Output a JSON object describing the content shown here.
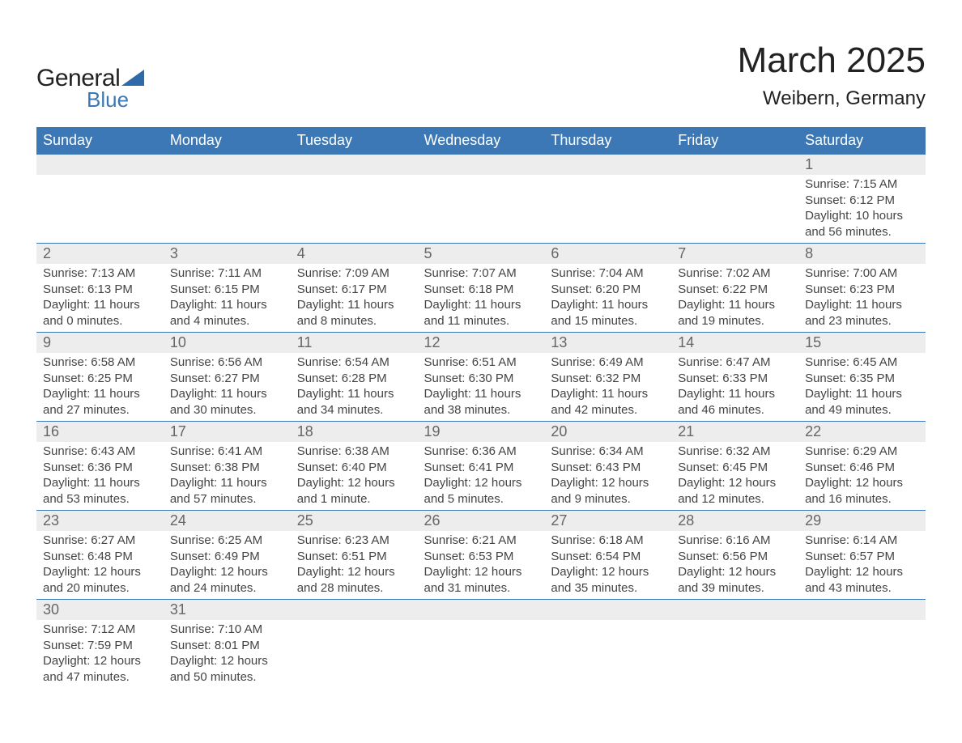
{
  "logo": {
    "text1": "General",
    "text2": "Blue",
    "triangle_color": "#2f6aa8"
  },
  "title": "March 2025",
  "location": "Weibern, Germany",
  "colors": {
    "header_bg": "#3b78b5",
    "header_fg": "#ffffff",
    "daynum_bg": "#ededed",
    "daynum_fg": "#666666",
    "text": "#444444",
    "rule": "#3b78b5"
  },
  "typography": {
    "title_fontsize": 44,
    "location_fontsize": 24,
    "header_fontsize": 18,
    "daynum_fontsize": 18,
    "body_fontsize": 15
  },
  "layout": {
    "columns": 7,
    "rows": 6
  },
  "weekdays": [
    "Sunday",
    "Monday",
    "Tuesday",
    "Wednesday",
    "Thursday",
    "Friday",
    "Saturday"
  ],
  "weeks": [
    [
      null,
      null,
      null,
      null,
      null,
      null,
      {
        "day": "1",
        "sunrise": "Sunrise: 7:15 AM",
        "sunset": "Sunset: 6:12 PM",
        "daylight": "Daylight: 10 hours and 56 minutes."
      }
    ],
    [
      {
        "day": "2",
        "sunrise": "Sunrise: 7:13 AM",
        "sunset": "Sunset: 6:13 PM",
        "daylight": "Daylight: 11 hours and 0 minutes."
      },
      {
        "day": "3",
        "sunrise": "Sunrise: 7:11 AM",
        "sunset": "Sunset: 6:15 PM",
        "daylight": "Daylight: 11 hours and 4 minutes."
      },
      {
        "day": "4",
        "sunrise": "Sunrise: 7:09 AM",
        "sunset": "Sunset: 6:17 PM",
        "daylight": "Daylight: 11 hours and 8 minutes."
      },
      {
        "day": "5",
        "sunrise": "Sunrise: 7:07 AM",
        "sunset": "Sunset: 6:18 PM",
        "daylight": "Daylight: 11 hours and 11 minutes."
      },
      {
        "day": "6",
        "sunrise": "Sunrise: 7:04 AM",
        "sunset": "Sunset: 6:20 PM",
        "daylight": "Daylight: 11 hours and 15 minutes."
      },
      {
        "day": "7",
        "sunrise": "Sunrise: 7:02 AM",
        "sunset": "Sunset: 6:22 PM",
        "daylight": "Daylight: 11 hours and 19 minutes."
      },
      {
        "day": "8",
        "sunrise": "Sunrise: 7:00 AM",
        "sunset": "Sunset: 6:23 PM",
        "daylight": "Daylight: 11 hours and 23 minutes."
      }
    ],
    [
      {
        "day": "9",
        "sunrise": "Sunrise: 6:58 AM",
        "sunset": "Sunset: 6:25 PM",
        "daylight": "Daylight: 11 hours and 27 minutes."
      },
      {
        "day": "10",
        "sunrise": "Sunrise: 6:56 AM",
        "sunset": "Sunset: 6:27 PM",
        "daylight": "Daylight: 11 hours and 30 minutes."
      },
      {
        "day": "11",
        "sunrise": "Sunrise: 6:54 AM",
        "sunset": "Sunset: 6:28 PM",
        "daylight": "Daylight: 11 hours and 34 minutes."
      },
      {
        "day": "12",
        "sunrise": "Sunrise: 6:51 AM",
        "sunset": "Sunset: 6:30 PM",
        "daylight": "Daylight: 11 hours and 38 minutes."
      },
      {
        "day": "13",
        "sunrise": "Sunrise: 6:49 AM",
        "sunset": "Sunset: 6:32 PM",
        "daylight": "Daylight: 11 hours and 42 minutes."
      },
      {
        "day": "14",
        "sunrise": "Sunrise: 6:47 AM",
        "sunset": "Sunset: 6:33 PM",
        "daylight": "Daylight: 11 hours and 46 minutes."
      },
      {
        "day": "15",
        "sunrise": "Sunrise: 6:45 AM",
        "sunset": "Sunset: 6:35 PM",
        "daylight": "Daylight: 11 hours and 49 minutes."
      }
    ],
    [
      {
        "day": "16",
        "sunrise": "Sunrise: 6:43 AM",
        "sunset": "Sunset: 6:36 PM",
        "daylight": "Daylight: 11 hours and 53 minutes."
      },
      {
        "day": "17",
        "sunrise": "Sunrise: 6:41 AM",
        "sunset": "Sunset: 6:38 PM",
        "daylight": "Daylight: 11 hours and 57 minutes."
      },
      {
        "day": "18",
        "sunrise": "Sunrise: 6:38 AM",
        "sunset": "Sunset: 6:40 PM",
        "daylight": "Daylight: 12 hours and 1 minute."
      },
      {
        "day": "19",
        "sunrise": "Sunrise: 6:36 AM",
        "sunset": "Sunset: 6:41 PM",
        "daylight": "Daylight: 12 hours and 5 minutes."
      },
      {
        "day": "20",
        "sunrise": "Sunrise: 6:34 AM",
        "sunset": "Sunset: 6:43 PM",
        "daylight": "Daylight: 12 hours and 9 minutes."
      },
      {
        "day": "21",
        "sunrise": "Sunrise: 6:32 AM",
        "sunset": "Sunset: 6:45 PM",
        "daylight": "Daylight: 12 hours and 12 minutes."
      },
      {
        "day": "22",
        "sunrise": "Sunrise: 6:29 AM",
        "sunset": "Sunset: 6:46 PM",
        "daylight": "Daylight: 12 hours and 16 minutes."
      }
    ],
    [
      {
        "day": "23",
        "sunrise": "Sunrise: 6:27 AM",
        "sunset": "Sunset: 6:48 PM",
        "daylight": "Daylight: 12 hours and 20 minutes."
      },
      {
        "day": "24",
        "sunrise": "Sunrise: 6:25 AM",
        "sunset": "Sunset: 6:49 PM",
        "daylight": "Daylight: 12 hours and 24 minutes."
      },
      {
        "day": "25",
        "sunrise": "Sunrise: 6:23 AM",
        "sunset": "Sunset: 6:51 PM",
        "daylight": "Daylight: 12 hours and 28 minutes."
      },
      {
        "day": "26",
        "sunrise": "Sunrise: 6:21 AM",
        "sunset": "Sunset: 6:53 PM",
        "daylight": "Daylight: 12 hours and 31 minutes."
      },
      {
        "day": "27",
        "sunrise": "Sunrise: 6:18 AM",
        "sunset": "Sunset: 6:54 PM",
        "daylight": "Daylight: 12 hours and 35 minutes."
      },
      {
        "day": "28",
        "sunrise": "Sunrise: 6:16 AM",
        "sunset": "Sunset: 6:56 PM",
        "daylight": "Daylight: 12 hours and 39 minutes."
      },
      {
        "day": "29",
        "sunrise": "Sunrise: 6:14 AM",
        "sunset": "Sunset: 6:57 PM",
        "daylight": "Daylight: 12 hours and 43 minutes."
      }
    ],
    [
      {
        "day": "30",
        "sunrise": "Sunrise: 7:12 AM",
        "sunset": "Sunset: 7:59 PM",
        "daylight": "Daylight: 12 hours and 47 minutes."
      },
      {
        "day": "31",
        "sunrise": "Sunrise: 7:10 AM",
        "sunset": "Sunset: 8:01 PM",
        "daylight": "Daylight: 12 hours and 50 minutes."
      },
      null,
      null,
      null,
      null,
      null
    ]
  ]
}
